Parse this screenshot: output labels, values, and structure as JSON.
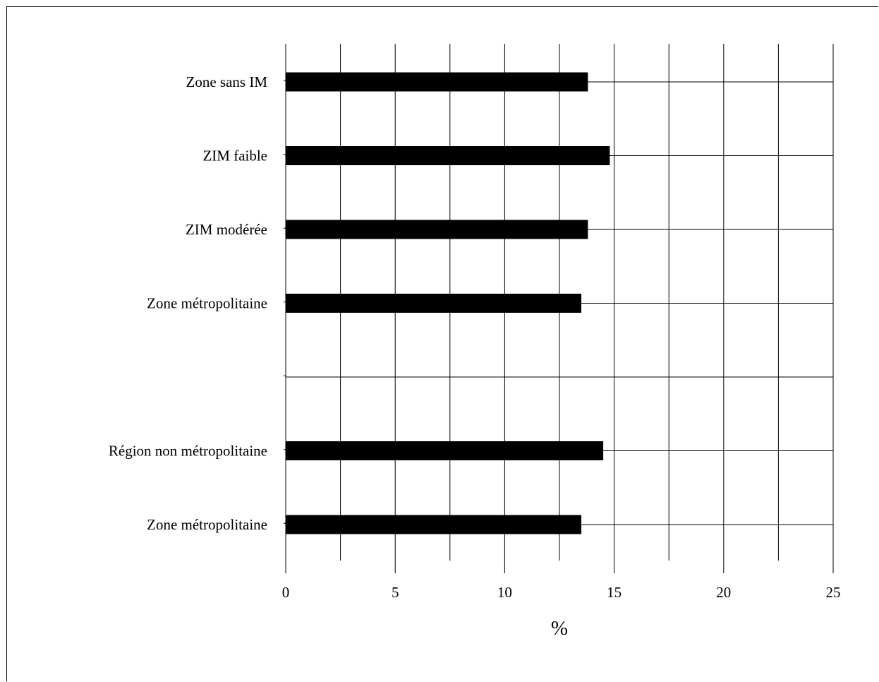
{
  "chart_data": {
    "type": "bar",
    "orientation": "horizontal",
    "categories": [
      "Zone sans IM",
      "ZIM faible",
      "ZIM modérée",
      "Zone métropolitaine",
      "",
      "Région non métropolitaine",
      "Zone métropolitaine"
    ],
    "values": [
      13.8,
      14.8,
      13.8,
      13.5,
      null,
      14.5,
      13.5
    ],
    "title": "",
    "xlabel": "%",
    "ylabel": "",
    "xlim": [
      0,
      25
    ],
    "xticks": [
      0,
      5,
      10,
      15,
      20,
      25
    ],
    "xtick_labels": [
      "0",
      "5",
      "10",
      "15",
      "20",
      "25"
    ],
    "bar_color": "#000000",
    "grid": true,
    "legend": "none"
  }
}
